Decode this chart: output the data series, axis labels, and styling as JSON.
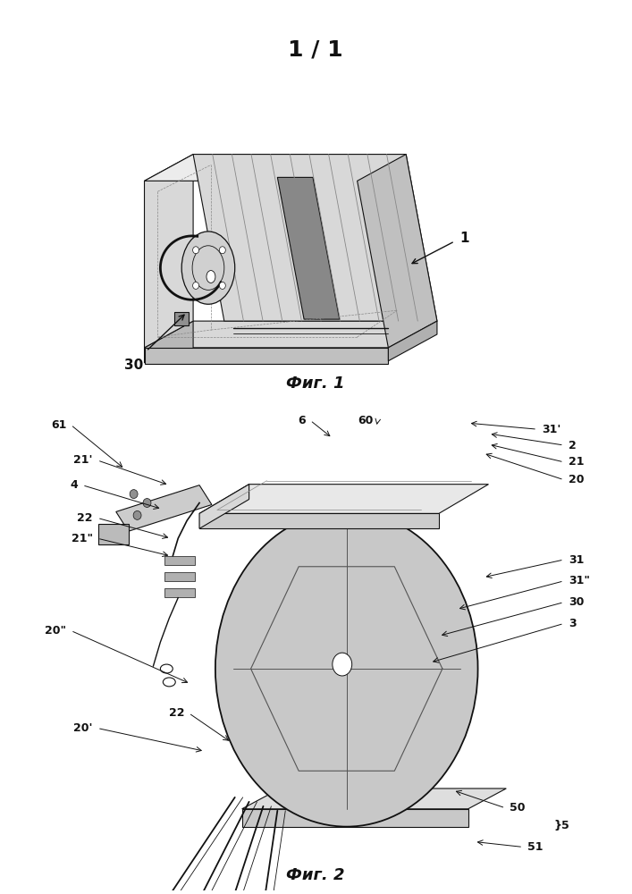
{
  "background_color": "#ffffff",
  "fig_width": 7.07,
  "fig_height": 10.0,
  "dpi": 100,
  "sheet_label": "1 / 1",
  "fig1_caption": "Фиг. 1",
  "fig2_caption": "Фиг. 2",
  "label_fontsize": 13,
  "annotation_fontsize": 10,
  "line_color": "#111111",
  "gray_light": "#e8e8e8",
  "gray_medium": "#cccccc",
  "gray_dark": "#aaaaaa"
}
